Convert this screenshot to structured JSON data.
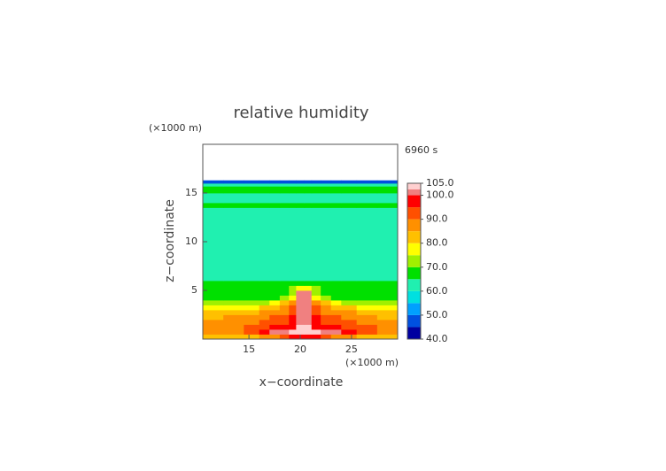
{
  "chart_data": {
    "type": "contour",
    "title": "relative humidity",
    "x_label": "x−coordinate",
    "y_label": "z−coordinate",
    "x_unit": "(×1000 m)",
    "y_unit": "(×1000 m)",
    "time_label": "6960 s",
    "xlim": [
      10.5,
      29.5
    ],
    "ylim": [
      0,
      20
    ],
    "xticks": [
      15,
      20,
      25
    ],
    "yticks": [
      5,
      10,
      15
    ],
    "x_edges": [
      10.5,
      12.5,
      14.5,
      16,
      17,
      18,
      18.9,
      19.6,
      20.4,
      21.1,
      22,
      23,
      24,
      25.5,
      27.5,
      29.5
    ],
    "y_edges": [
      0,
      0.5,
      1,
      1.5,
      2,
      2.5,
      3,
      3.5,
      4,
      4.5,
      5,
      5.5,
      6,
      7,
      13,
      13.5,
      14,
      15,
      15.7,
      16,
      16.3
    ],
    "values": [
      [
        82,
        82,
        83,
        85,
        88,
        92,
        96,
        98,
        98,
        96,
        92,
        88,
        85,
        83,
        82
      ],
      [
        85,
        88,
        92,
        97,
        101,
        102,
        103,
        104,
        104,
        103,
        102,
        101,
        97,
        92,
        88
      ],
      [
        88,
        88,
        90,
        93,
        96,
        97,
        99,
        103,
        103,
        99,
        97,
        96,
        93,
        90,
        88
      ],
      [
        86,
        87,
        88,
        90,
        92,
        94,
        97,
        102,
        102,
        97,
        94,
        92,
        90,
        87,
        86
      ],
      [
        84,
        85,
        86,
        88,
        90,
        92,
        95,
        102,
        102,
        95,
        92,
        90,
        88,
        85,
        84
      ],
      [
        81,
        82,
        83,
        85,
        87,
        89,
        93,
        102,
        102,
        93,
        89,
        87,
        85,
        82,
        81
      ],
      [
        78,
        78,
        79,
        80,
        82,
        86,
        91,
        102,
        102,
        91,
        86,
        82,
        80,
        78,
        78
      ],
      [
        73,
        73,
        73,
        74,
        76,
        80,
        88,
        102,
        102,
        88,
        80,
        76,
        74,
        73,
        73
      ],
      [
        68,
        68,
        68,
        68,
        69,
        72,
        78,
        102,
        102,
        78,
        72,
        69,
        68,
        68,
        68
      ],
      [
        66,
        66,
        66,
        66,
        66,
        68,
        72,
        102,
        102,
        72,
        68,
        66,
        66,
        66,
        66
      ],
      [
        68,
        68,
        68,
        68,
        68,
        69,
        72,
        78,
        78,
        72,
        69,
        68,
        68,
        68,
        68
      ],
      [
        66,
        66,
        66,
        66,
        66,
        66,
        66,
        66,
        66,
        66,
        66,
        66,
        66,
        66,
        66
      ],
      [
        63,
        63,
        63,
        63,
        63,
        63,
        63,
        63,
        63,
        63,
        63,
        63,
        63,
        63,
        63
      ],
      [
        61,
        61,
        61,
        61,
        61,
        61,
        61,
        61,
        61,
        61,
        61,
        61,
        61,
        61,
        61
      ],
      [
        64,
        64,
        64,
        64,
        64,
        64,
        64,
        64,
        64,
        64,
        64,
        64,
        64,
        64,
        64
      ],
      [
        67,
        67,
        67,
        67,
        67,
        67,
        67,
        67,
        67,
        67,
        67,
        67,
        67,
        67,
        67
      ],
      [
        64,
        64,
        64,
        64,
        64,
        64,
        64,
        64,
        64,
        64,
        64,
        64,
        64,
        64,
        64
      ],
      [
        67,
        67,
        67,
        67,
        67,
        67,
        67,
        67,
        67,
        67,
        67,
        67,
        67,
        67,
        67
      ],
      [
        62,
        62,
        62,
        62,
        62,
        62,
        62,
        62,
        62,
        62,
        62,
        62,
        62,
        62,
        62
      ],
      [
        45,
        45,
        45,
        45,
        45,
        45,
        45,
        45,
        45,
        45,
        45,
        45,
        45,
        45,
        45
      ]
    ],
    "colorbar": {
      "levels": [
        40,
        45,
        50,
        55,
        60,
        65,
        70,
        75,
        80,
        85,
        90,
        95,
        100,
        102.5,
        105
      ],
      "colors": [
        "#0000a0",
        "#0050e0",
        "#00a0ff",
        "#00e0e0",
        "#20f0b0",
        "#00e000",
        "#a0f000",
        "#ffff00",
        "#ffc000",
        "#ff9000",
        "#ff5000",
        "#ff0000",
        "#f08080",
        "#ffd0d0"
      ],
      "ticks": [
        {
          "value": 105,
          "label": "105.0"
        },
        {
          "value": 100,
          "label": "100.0"
        },
        {
          "value": 90,
          "label": "90.0"
        },
        {
          "value": 80,
          "label": "80.0"
        },
        {
          "value": 70,
          "label": "70.0"
        },
        {
          "value": 60,
          "label": "60.0"
        },
        {
          "value": 50,
          "label": "50.0"
        },
        {
          "value": 40,
          "label": "40.0"
        }
      ]
    }
  }
}
